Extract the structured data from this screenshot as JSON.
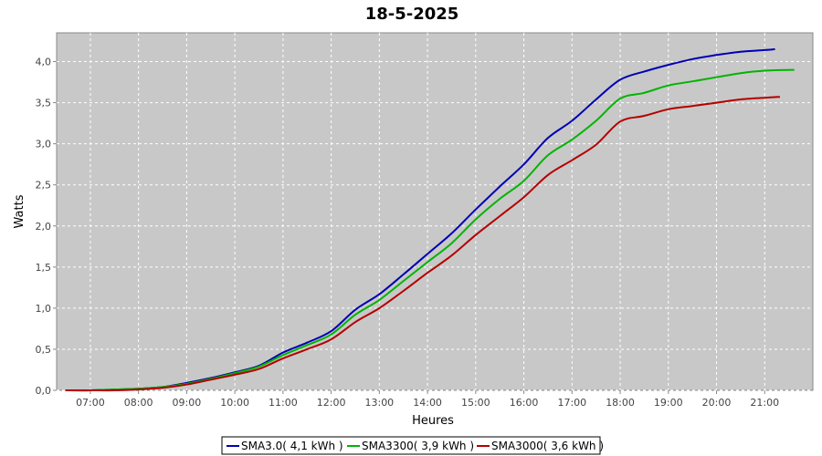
{
  "chart_data": {
    "type": "line",
    "title": "18-5-2025",
    "xlabel": "Heures",
    "ylabel": "Watts",
    "xlim": [
      6.3,
      22.0
    ],
    "ylim": [
      0.0,
      4.35
    ],
    "xticks": [
      {
        "value": 7,
        "label": "07:00"
      },
      {
        "value": 8,
        "label": "08:00"
      },
      {
        "value": 9,
        "label": "09:00"
      },
      {
        "value": 10,
        "label": "10:00"
      },
      {
        "value": 11,
        "label": "11:00"
      },
      {
        "value": 12,
        "label": "12:00"
      },
      {
        "value": 13,
        "label": "13:00"
      },
      {
        "value": 14,
        "label": "14:00"
      },
      {
        "value": 15,
        "label": "15:00"
      },
      {
        "value": 16,
        "label": "16:00"
      },
      {
        "value": 17,
        "label": "17:00"
      },
      {
        "value": 18,
        "label": "18:00"
      },
      {
        "value": 19,
        "label": "19:00"
      },
      {
        "value": 20,
        "label": "20:00"
      },
      {
        "value": 21,
        "label": "21:00"
      }
    ],
    "yticks": [
      {
        "value": 0.0,
        "label": "0,0"
      },
      {
        "value": 0.5,
        "label": "0,5"
      },
      {
        "value": 1.0,
        "label": "1,0"
      },
      {
        "value": 1.5,
        "label": "1,5"
      },
      {
        "value": 2.0,
        "label": "2,0"
      },
      {
        "value": 2.5,
        "label": "2,5"
      },
      {
        "value": 3.0,
        "label": "3,0"
      },
      {
        "value": 3.5,
        "label": "3,5"
      },
      {
        "value": 4.0,
        "label": "4,0"
      }
    ],
    "grid": true,
    "legend_position": "bottom",
    "colors": {
      "plot_background": "#c8c8c8",
      "grid": "#ffffff",
      "axis": "#888888"
    },
    "series": [
      {
        "name": "SMA3.0( 4,1 kWh )",
        "color": "#0000b4",
        "x": [
          6.5,
          7.0,
          7.5,
          8.0,
          8.5,
          9.0,
          9.5,
          10.0,
          10.5,
          11.0,
          11.5,
          12.0,
          12.5,
          13.0,
          13.5,
          14.0,
          14.5,
          15.0,
          15.5,
          16.0,
          16.5,
          17.0,
          17.5,
          18.0,
          18.5,
          19.0,
          19.5,
          20.0,
          20.5,
          21.0,
          21.2
        ],
        "y": [
          0.0,
          0.0,
          0.01,
          0.02,
          0.04,
          0.09,
          0.15,
          0.22,
          0.3,
          0.46,
          0.58,
          0.72,
          0.98,
          1.17,
          1.41,
          1.66,
          1.91,
          2.2,
          2.48,
          2.75,
          3.07,
          3.28,
          3.54,
          3.78,
          3.88,
          3.96,
          4.03,
          4.08,
          4.12,
          4.14,
          4.15
        ]
      },
      {
        "name": "SMA3300( 3,9 kWh )",
        "color": "#00b400",
        "x": [
          6.5,
          7.0,
          7.5,
          8.0,
          8.5,
          9.0,
          9.5,
          10.0,
          10.5,
          11.0,
          11.5,
          12.0,
          12.5,
          13.0,
          13.5,
          14.0,
          14.5,
          15.0,
          15.5,
          16.0,
          16.5,
          17.0,
          17.5,
          18.0,
          18.5,
          19.0,
          19.5,
          20.0,
          20.5,
          21.0,
          21.6
        ],
        "y": [
          0.0,
          0.0,
          0.01,
          0.02,
          0.04,
          0.08,
          0.14,
          0.21,
          0.29,
          0.43,
          0.55,
          0.68,
          0.92,
          1.1,
          1.33,
          1.56,
          1.79,
          2.08,
          2.33,
          2.55,
          2.86,
          3.05,
          3.28,
          3.55,
          3.62,
          3.71,
          3.76,
          3.81,
          3.86,
          3.89,
          3.9
        ]
      },
      {
        "name": "SMA3000( 3,6 kWh )",
        "color": "#b40000",
        "x": [
          6.5,
          7.0,
          7.5,
          8.0,
          8.5,
          9.0,
          9.5,
          10.0,
          10.5,
          11.0,
          11.5,
          12.0,
          12.5,
          13.0,
          13.5,
          14.0,
          14.5,
          15.0,
          15.5,
          16.0,
          16.5,
          17.0,
          17.5,
          18.0,
          18.5,
          19.0,
          19.5,
          20.0,
          20.5,
          21.0,
          21.3
        ],
        "y": [
          0.0,
          0.0,
          0.0,
          0.01,
          0.03,
          0.07,
          0.13,
          0.19,
          0.26,
          0.39,
          0.5,
          0.62,
          0.83,
          1.0,
          1.21,
          1.43,
          1.64,
          1.89,
          2.12,
          2.35,
          2.62,
          2.8,
          2.99,
          3.27,
          3.34,
          3.42,
          3.46,
          3.5,
          3.54,
          3.56,
          3.57
        ]
      }
    ]
  }
}
